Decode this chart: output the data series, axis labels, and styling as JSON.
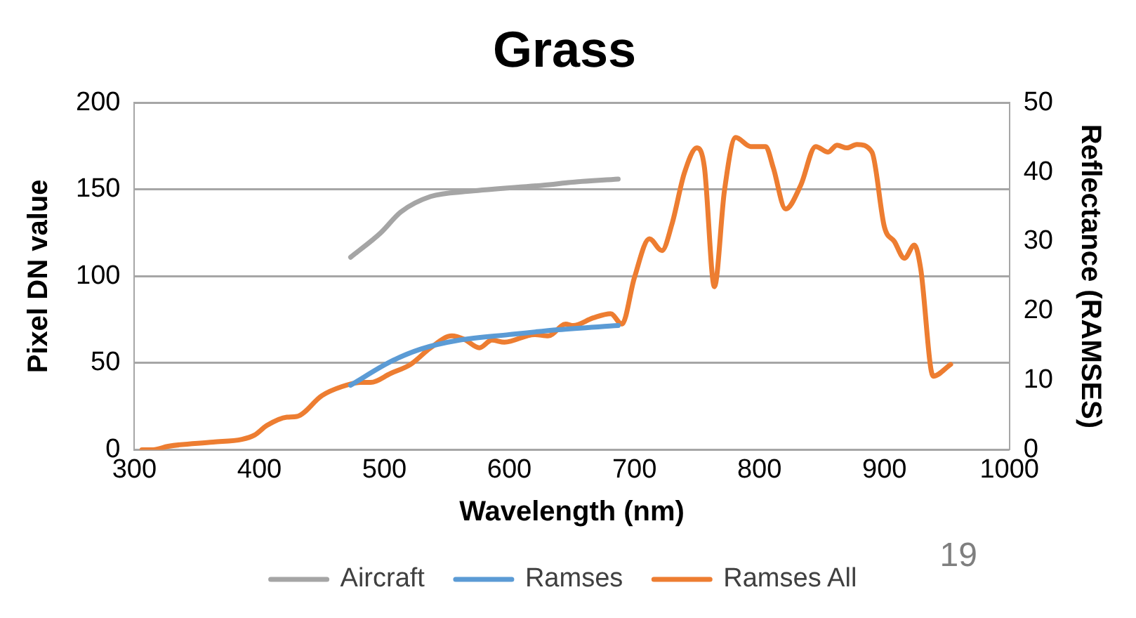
{
  "chart_data": {
    "type": "line",
    "title": "Grass",
    "xlabel": "Wavelength (nm)",
    "ylabel": "Pixel DN value",
    "y2label": "Reflectance (RAMSES)",
    "annotations": [
      "19"
    ],
    "xlim": [
      300,
      1000
    ],
    "xticks": [
      300,
      400,
      500,
      600,
      700,
      800,
      900,
      1000
    ],
    "ylim": [
      0,
      200
    ],
    "yticks": [
      0,
      50,
      100,
      150,
      200
    ],
    "y2lim": [
      0,
      50
    ],
    "y2ticks": [
      0,
      10,
      20,
      30,
      40,
      50
    ],
    "grid": "y",
    "legend": "bottom",
    "marker": "none",
    "line_style": "solid",
    "series": [
      {
        "name": "Aircraft",
        "color": "#a5a5a5",
        "axis": "y",
        "x": [
          473,
          497,
          513,
          537,
          568,
          635,
          647,
          687
        ],
        "values": [
          111,
          125,
          137,
          146,
          149,
          153,
          154,
          156
        ]
      },
      {
        "name": "Ramses",
        "color": "#5b9bd5",
        "axis": "y2",
        "x": [
          473,
          505,
          529,
          560,
          600,
          639,
          687
        ],
        "values": [
          9.3,
          12.7,
          14.5,
          15.8,
          16.6,
          17.3,
          17.9
        ]
      },
      {
        "name": "Ramses All",
        "color": "#ed7d31",
        "axis": "y2",
        "x": [
          306,
          315,
          327,
          363,
          386,
          396,
          406,
          422,
          430,
          450,
          466,
          481,
          489,
          505,
          521,
          537,
          554,
          564,
          576,
          586,
          596,
          620,
          631,
          645,
          651,
          667,
          681,
          690,
          700,
          712,
          722,
          730,
          740,
          750,
          756,
          764,
          772,
          781,
          793,
          805,
          811,
          821,
          833,
          845,
          855,
          862,
          870,
          878,
          890,
          900,
          908,
          916,
          924,
          929,
          939,
          953
        ],
        "values": [
          0,
          0,
          0.5,
          1.1,
          1.5,
          2.1,
          3.5,
          4.7,
          4.8,
          7.8,
          9.1,
          9.7,
          9.7,
          11.0,
          12.3,
          14.7,
          16.4,
          15.9,
          14.7,
          15.8,
          15.5,
          16.6,
          16.4,
          18.1,
          17.9,
          19.0,
          19.6,
          18.1,
          24.8,
          30.4,
          28.7,
          32.5,
          39.9,
          43.5,
          40.7,
          23.5,
          37.3,
          45.0,
          43.7,
          43.7,
          40.7,
          34.7,
          38.1,
          43.7,
          42.9,
          43.9,
          43.5,
          44.0,
          42.9,
          32.1,
          30.0,
          27.6,
          29.5,
          26.1,
          10.6,
          12.3
        ]
      }
    ]
  }
}
